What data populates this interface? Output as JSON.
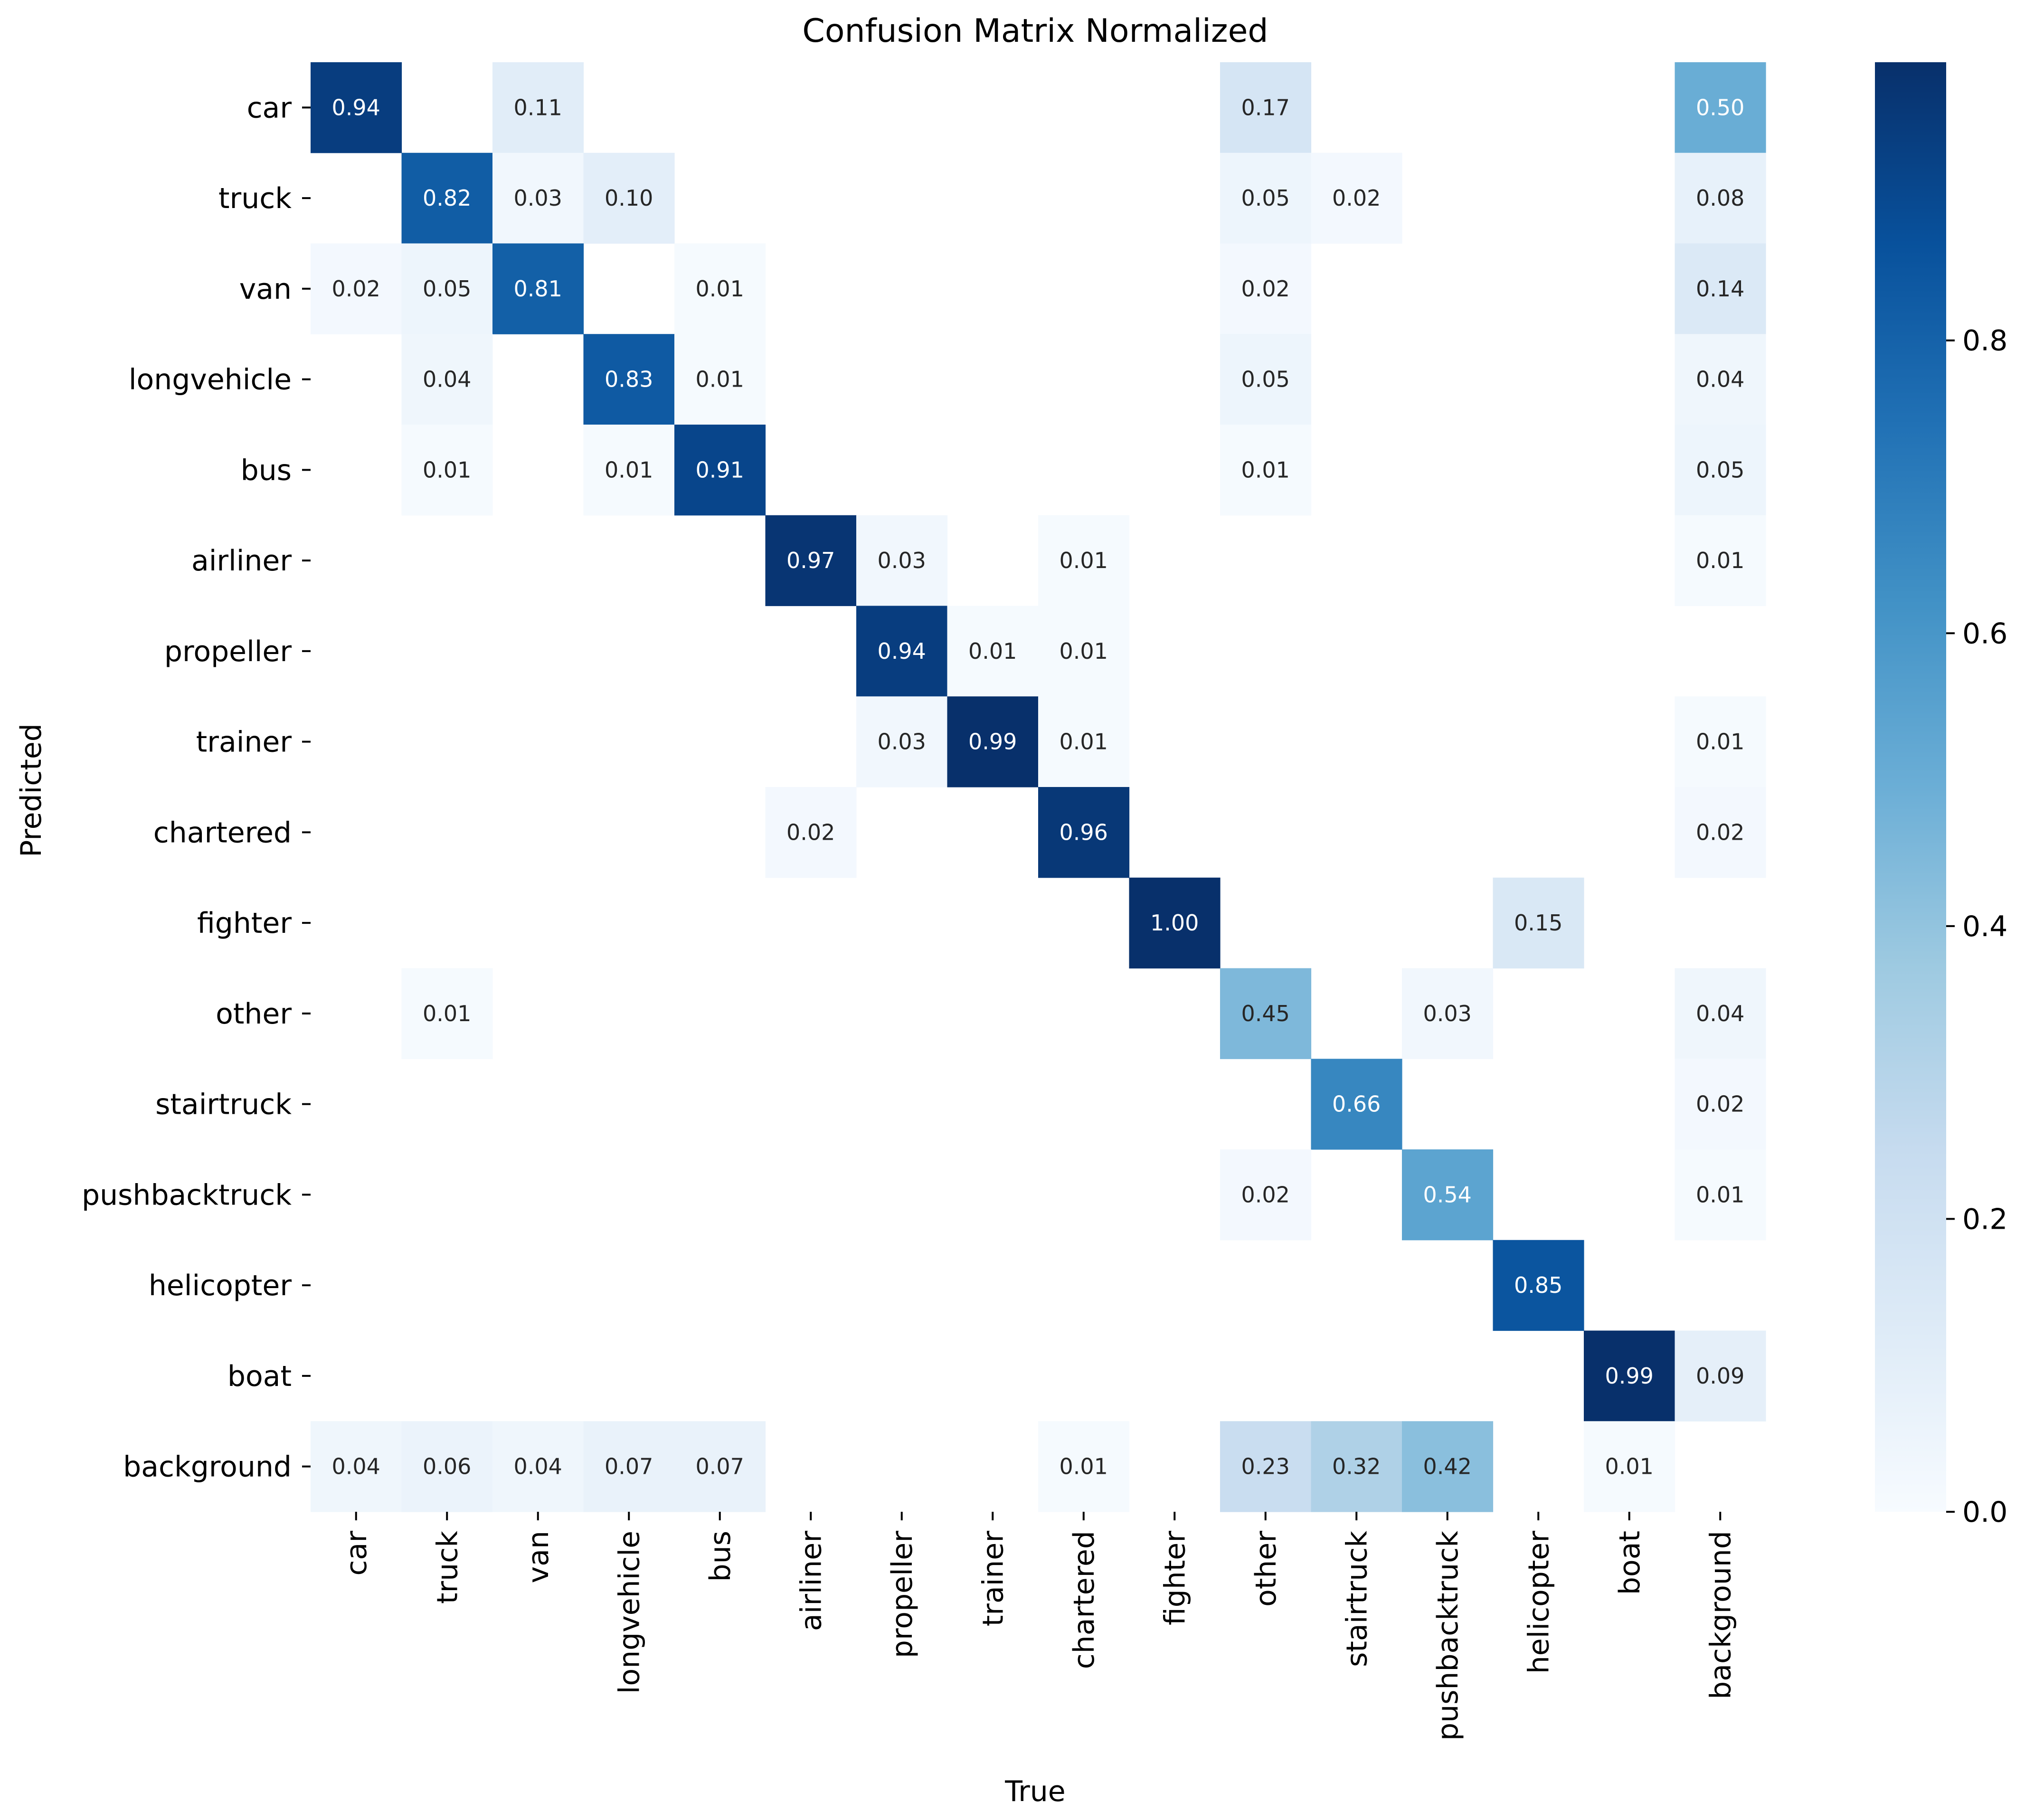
{
  "chart_data": {
    "type": "heatmap",
    "title": "Confusion Matrix Normalized",
    "xlabel": "True",
    "ylabel": "Predicted",
    "categories": [
      "car",
      "truck",
      "van",
      "longvehicle",
      "bus",
      "airliner",
      "propeller",
      "trainer",
      "chartered",
      "fighter",
      "other",
      "stairtruck",
      "pushbacktruck",
      "helicopter",
      "boat",
      "background"
    ],
    "colorbar": {
      "range": [
        0,
        0.99
      ],
      "ticks": [
        0.0,
        0.2,
        0.4,
        0.6,
        0.8
      ],
      "tick_labels": [
        "0.0",
        "0.2",
        "0.4",
        "0.6",
        "0.8"
      ],
      "colormap": "Blues"
    },
    "matrix": [
      [
        0.94,
        null,
        0.11,
        null,
        null,
        null,
        null,
        null,
        null,
        null,
        0.17,
        null,
        null,
        null,
        null,
        0.5
      ],
      [
        null,
        0.82,
        0.03,
        0.1,
        null,
        null,
        null,
        null,
        null,
        null,
        0.05,
        0.02,
        null,
        null,
        null,
        0.08
      ],
      [
        0.02,
        0.05,
        0.81,
        null,
        0.01,
        null,
        null,
        null,
        null,
        null,
        0.02,
        null,
        null,
        null,
        null,
        0.14
      ],
      [
        null,
        0.04,
        null,
        0.83,
        0.01,
        null,
        null,
        null,
        null,
        null,
        0.05,
        null,
        null,
        null,
        null,
        0.04
      ],
      [
        null,
        0.01,
        null,
        0.01,
        0.91,
        null,
        null,
        null,
        null,
        null,
        0.01,
        null,
        null,
        null,
        null,
        0.05
      ],
      [
        null,
        null,
        null,
        null,
        null,
        0.97,
        0.03,
        null,
        0.01,
        null,
        null,
        null,
        null,
        null,
        null,
        0.01
      ],
      [
        null,
        null,
        null,
        null,
        null,
        null,
        0.94,
        0.01,
        0.01,
        null,
        null,
        null,
        null,
        null,
        null,
        null
      ],
      [
        null,
        null,
        null,
        null,
        null,
        null,
        0.03,
        0.99,
        0.01,
        null,
        null,
        null,
        null,
        null,
        null,
        0.01
      ],
      [
        null,
        null,
        null,
        null,
        null,
        0.02,
        null,
        null,
        0.96,
        null,
        null,
        null,
        null,
        null,
        null,
        0.02
      ],
      [
        null,
        null,
        null,
        null,
        null,
        null,
        null,
        null,
        null,
        1.0,
        null,
        null,
        null,
        0.15,
        null,
        null
      ],
      [
        null,
        0.01,
        null,
        null,
        null,
        null,
        null,
        null,
        null,
        null,
        0.45,
        null,
        0.03,
        null,
        null,
        0.04
      ],
      [
        null,
        null,
        null,
        null,
        null,
        null,
        null,
        null,
        null,
        null,
        null,
        0.66,
        null,
        null,
        null,
        0.02
      ],
      [
        null,
        null,
        null,
        null,
        null,
        null,
        null,
        null,
        null,
        null,
        0.02,
        null,
        0.54,
        null,
        null,
        0.01
      ],
      [
        null,
        null,
        null,
        null,
        null,
        null,
        null,
        null,
        null,
        null,
        null,
        null,
        null,
        0.85,
        null,
        null
      ],
      [
        null,
        null,
        null,
        null,
        null,
        null,
        null,
        null,
        null,
        null,
        null,
        null,
        null,
        null,
        0.99,
        0.09
      ],
      [
        0.04,
        0.06,
        0.04,
        0.07,
        0.07,
        null,
        null,
        null,
        0.01,
        null,
        0.23,
        0.32,
        0.42,
        null,
        0.01,
        null
      ]
    ]
  }
}
